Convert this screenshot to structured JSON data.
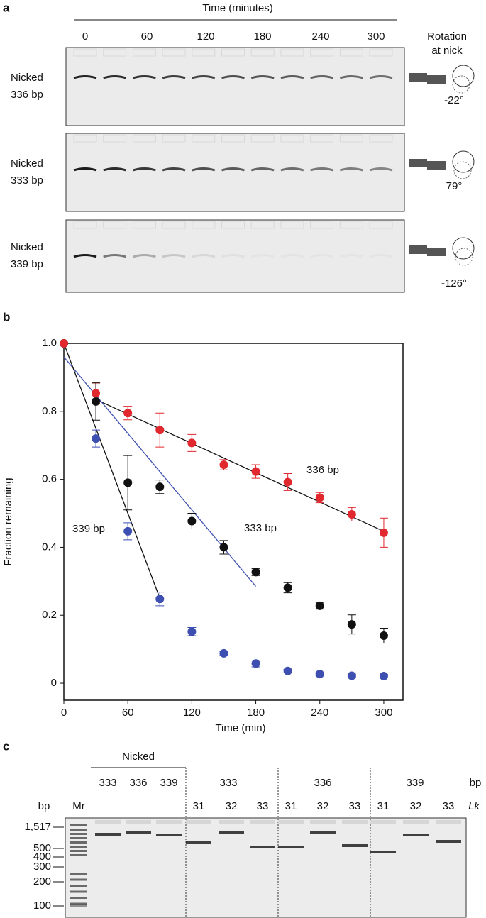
{
  "panel_a": {
    "label": "a",
    "time_axis_title": "Time (minutes)",
    "time_labels": [
      "0",
      "60",
      "120",
      "180",
      "240",
      "300"
    ],
    "rotation_title": [
      "Rotation",
      "at nick"
    ],
    "gels": [
      {
        "label": [
          "Nicked",
          "336 bp"
        ],
        "angle": "-22°"
      },
      {
        "label": [
          "Nicked",
          "333 bp"
        ],
        "angle": "79°"
      },
      {
        "label": [
          "Nicked",
          "339 bp"
        ],
        "angle": "-126°"
      }
    ]
  },
  "panel_b_label": "b",
  "chart_data": {
    "type": "scatter",
    "x_label": "Time (min)",
    "y_label": "Fraction remaining",
    "x": [
      0,
      30,
      60,
      90,
      120,
      150,
      180,
      210,
      240,
      270,
      300
    ],
    "series": [
      {
        "name": "336 bp",
        "color": "#e0282e",
        "values": [
          1.0,
          0.853,
          0.795,
          0.745,
          0.707,
          0.643,
          0.623,
          0.592,
          0.546,
          0.497,
          0.443
        ],
        "errors": [
          0,
          0.03,
          0.02,
          0.05,
          0.025,
          0.015,
          0.02,
          0.025,
          0.015,
          0.02,
          0.043
        ]
      },
      {
        "name": "333 bp",
        "color": "#111111",
        "values": [
          1.0,
          0.829,
          0.59,
          0.578,
          0.477,
          0.4,
          0.327,
          0.281,
          0.228,
          0.173,
          0.14
        ],
        "errors": [
          0,
          0.055,
          0.08,
          0.02,
          0.023,
          0.02,
          0.01,
          0.015,
          0.01,
          0.028,
          0.022
        ]
      },
      {
        "name": "339 bp",
        "color": "#3d4fb0",
        "values": [
          1.0,
          0.72,
          0.447,
          0.248,
          0.152,
          0.088,
          0.058,
          0.036,
          0.027,
          0.022,
          0.021
        ],
        "errors": [
          0,
          0.025,
          0.025,
          0.02,
          0.012,
          0.005,
          0.01,
          0.005,
          0.005,
          0.005,
          0.005
        ]
      }
    ],
    "fits": [
      {
        "color": "#111111",
        "x": [
          30,
          300
        ],
        "values": [
          0.835,
          0.447
        ]
      },
      {
        "color": "#3d4fb0",
        "x": [
          0,
          180
        ],
        "values": [
          0.96,
          0.285
        ]
      },
      {
        "color": "#111111",
        "x": [
          0,
          90
        ],
        "values": [
          1.0,
          0.25
        ]
      }
    ],
    "xlim": [
      0,
      318
    ],
    "ylim": [
      -0.05,
      1.0
    ],
    "xticks": [
      0,
      60,
      120,
      180,
      240,
      300
    ],
    "yticks": [
      0,
      0.2,
      0.4,
      0.6,
      0.8,
      {
        "value": 1,
        "label": "1.0"
      }
    ]
  },
  "panel_c": {
    "label": "c",
    "nicked_title": "Nicked",
    "nicked_lanes": [
      "333",
      "336",
      "339"
    ],
    "groups": [
      "333",
      "336",
      "339"
    ],
    "bp_unit": "bp",
    "left_unit": "bp",
    "marker": "Mr",
    "lk_lanes": [
      "31",
      "32",
      "33",
      "31",
      "32",
      "33",
      "31",
      "32",
      "33"
    ],
    "lk_title": "Lk",
    "size_labels": [
      "1,517",
      "500",
      "400",
      "300",
      "200",
      "100"
    ]
  }
}
